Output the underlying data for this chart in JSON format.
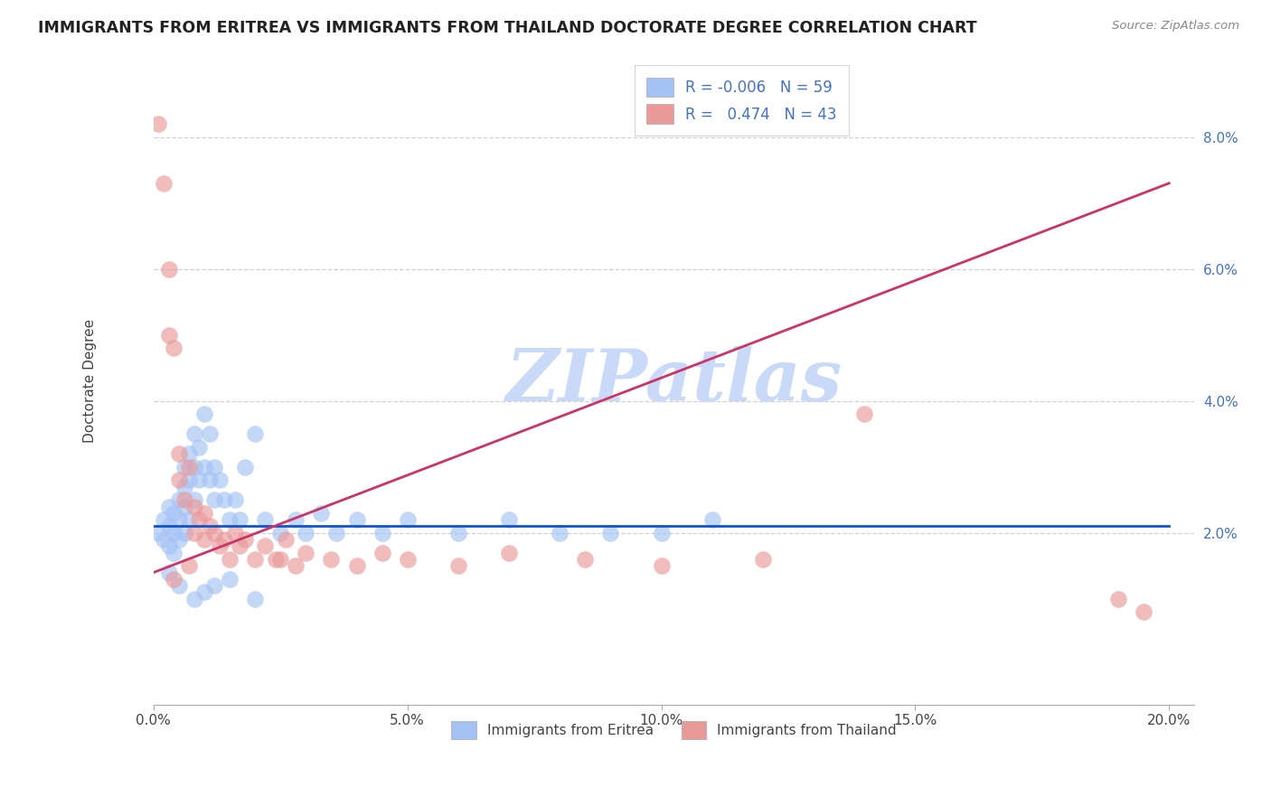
{
  "title": "IMMIGRANTS FROM ERITREA VS IMMIGRANTS FROM THAILAND DOCTORATE DEGREE CORRELATION CHART",
  "source": "Source: ZipAtlas.com",
  "ylabel": "Doctorate Degree",
  "xlim": [
    0.0,
    0.205
  ],
  "ylim": [
    -0.006,
    0.092
  ],
  "xticks": [
    0.0,
    0.05,
    0.1,
    0.15,
    0.2
  ],
  "yticks": [
    0.0,
    0.02,
    0.04,
    0.06,
    0.08
  ],
  "xtick_labels": [
    "0.0%",
    "5.0%",
    "10.0%",
    "15.0%",
    "20.0%"
  ],
  "ytick_labels": [
    "",
    "2.0%",
    "4.0%",
    "6.0%",
    "8.0%"
  ],
  "legend_label1": "Immigrants from Eritrea",
  "legend_label2": "Immigrants from Thailand",
  "R1": "-0.006",
  "N1": "59",
  "R2": "0.474",
  "N2": "43",
  "color_blue": "#a4c2f4",
  "color_pink": "#ea9999",
  "trend_blue": "#1155cc",
  "trend_pink": "#cc3366",
  "watermark": "ZIPatlas",
  "watermark_color": "#c9daf8",
  "blue_trend_x0": 0.0,
  "blue_trend_y0": 0.021,
  "blue_trend_x1": 0.2,
  "blue_trend_y1": 0.021,
  "pink_trend_x0": 0.0,
  "pink_trend_y0": 0.014,
  "pink_trend_x1": 0.2,
  "pink_trend_y1": 0.073,
  "blue_x": [
    0.001,
    0.002,
    0.002,
    0.003,
    0.003,
    0.003,
    0.004,
    0.004,
    0.004,
    0.005,
    0.005,
    0.005,
    0.006,
    0.006,
    0.006,
    0.006,
    0.007,
    0.007,
    0.007,
    0.008,
    0.008,
    0.008,
    0.009,
    0.009,
    0.01,
    0.01,
    0.011,
    0.011,
    0.012,
    0.012,
    0.013,
    0.014,
    0.015,
    0.016,
    0.017,
    0.018,
    0.02,
    0.022,
    0.025,
    0.028,
    0.03,
    0.033,
    0.036,
    0.04,
    0.045,
    0.05,
    0.06,
    0.07,
    0.08,
    0.09,
    0.003,
    0.005,
    0.008,
    0.01,
    0.012,
    0.015,
    0.02,
    0.1,
    0.11
  ],
  "blue_y": [
    0.02,
    0.022,
    0.019,
    0.024,
    0.021,
    0.018,
    0.023,
    0.02,
    0.017,
    0.025,
    0.022,
    0.019,
    0.03,
    0.027,
    0.024,
    0.02,
    0.032,
    0.028,
    0.022,
    0.035,
    0.03,
    0.025,
    0.033,
    0.028,
    0.038,
    0.03,
    0.035,
    0.028,
    0.03,
    0.025,
    0.028,
    0.025,
    0.022,
    0.025,
    0.022,
    0.03,
    0.035,
    0.022,
    0.02,
    0.022,
    0.02,
    0.023,
    0.02,
    0.022,
    0.02,
    0.022,
    0.02,
    0.022,
    0.02,
    0.02,
    0.014,
    0.012,
    0.01,
    0.011,
    0.012,
    0.013,
    0.01,
    0.02,
    0.022
  ],
  "pink_x": [
    0.001,
    0.002,
    0.003,
    0.003,
    0.004,
    0.005,
    0.005,
    0.006,
    0.007,
    0.008,
    0.008,
    0.009,
    0.01,
    0.01,
    0.011,
    0.012,
    0.013,
    0.014,
    0.015,
    0.016,
    0.017,
    0.018,
    0.02,
    0.022,
    0.024,
    0.026,
    0.028,
    0.03,
    0.035,
    0.04,
    0.045,
    0.05,
    0.06,
    0.07,
    0.085,
    0.1,
    0.12,
    0.14,
    0.19,
    0.195,
    0.004,
    0.007,
    0.025
  ],
  "pink_y": [
    0.082,
    0.073,
    0.06,
    0.05,
    0.048,
    0.032,
    0.028,
    0.025,
    0.03,
    0.024,
    0.02,
    0.022,
    0.023,
    0.019,
    0.021,
    0.02,
    0.018,
    0.019,
    0.016,
    0.02,
    0.018,
    0.019,
    0.016,
    0.018,
    0.016,
    0.019,
    0.015,
    0.017,
    0.016,
    0.015,
    0.017,
    0.016,
    0.015,
    0.017,
    0.016,
    0.015,
    0.016,
    0.038,
    0.01,
    0.008,
    0.013,
    0.015,
    0.016
  ]
}
